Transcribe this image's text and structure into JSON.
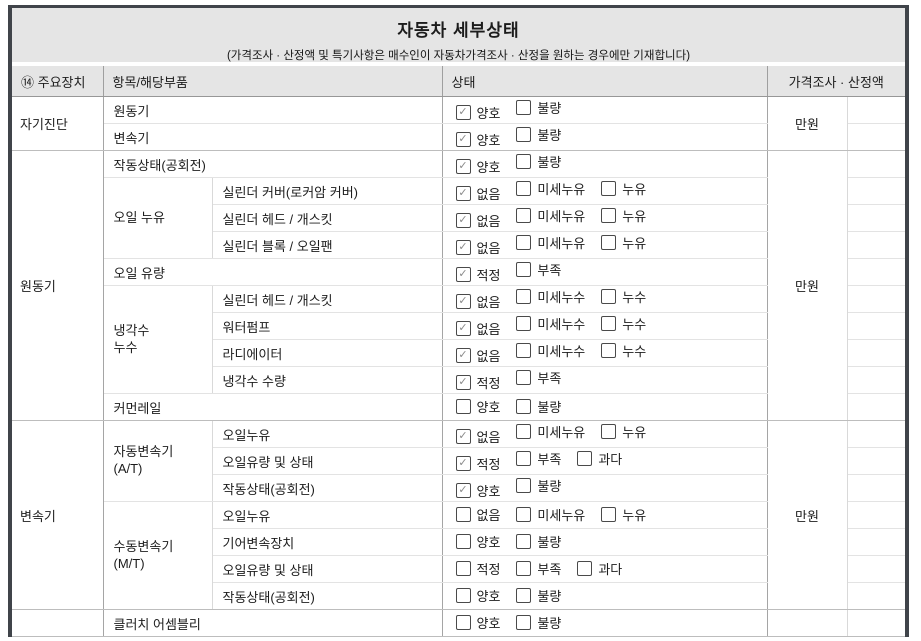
{
  "title": {
    "main": "자동차 세부상태",
    "note": "(가격조사 · 산정액 및 특기사항은 매수인이 자동차가격조사 · 산정을 원하는 경우에만 기재합니다)"
  },
  "checkbox": {
    "checked_glyph": "✓",
    "checked_color": "#8a8a8a"
  },
  "table": {
    "headers": [
      "⑭ 주요장치",
      "항목/해당부품",
      "상태",
      "가격조사 · 산정액"
    ],
    "groups": [
      {
        "label": "자기진단",
        "price_label": "만원",
        "rows": [
          {
            "item": "원동기",
            "span": "full",
            "options": [
              {
                "label": "양호",
                "checked": true
              },
              {
                "label": "불량",
                "checked": false
              }
            ]
          },
          {
            "item": "변속기",
            "span": "full",
            "options": [
              {
                "label": "양호",
                "checked": true
              },
              {
                "label": "불량",
                "checked": false
              }
            ]
          }
        ]
      },
      {
        "label": "원동기",
        "price_label": "만원",
        "rows": [
          {
            "item": "작동상태(공회전)",
            "span": "full",
            "options": [
              {
                "label": "양호",
                "checked": true
              },
              {
                "label": "불량",
                "checked": false
              }
            ]
          },
          {
            "sub": "오일 누유",
            "sub_rowspan": 3,
            "item": "실린더 커버(로커암 커버)",
            "options": [
              {
                "label": "없음",
                "checked": true
              },
              {
                "label": "미세누유",
                "checked": false
              },
              {
                "label": "누유",
                "checked": false
              }
            ]
          },
          {
            "item": "실린더 헤드 / 개스킷",
            "options": [
              {
                "label": "없음",
                "checked": true
              },
              {
                "label": "미세누유",
                "checked": false
              },
              {
                "label": "누유",
                "checked": false
              }
            ]
          },
          {
            "item": "실린더 블록 / 오일팬",
            "options": [
              {
                "label": "없음",
                "checked": true
              },
              {
                "label": "미세누유",
                "checked": false
              },
              {
                "label": "누유",
                "checked": false
              }
            ]
          },
          {
            "item": "오일 유량",
            "span": "full",
            "options": [
              {
                "label": "적정",
                "checked": true
              },
              {
                "label": "부족",
                "checked": false
              }
            ]
          },
          {
            "sub": "냉각수\n누수",
            "sub_rowspan": 4,
            "item": "실린더 헤드 / 개스킷",
            "options": [
              {
                "label": "없음",
                "checked": true
              },
              {
                "label": "미세누수",
                "checked": false
              },
              {
                "label": "누수",
                "checked": false
              }
            ]
          },
          {
            "item": "워터펌프",
            "options": [
              {
                "label": "없음",
                "checked": true
              },
              {
                "label": "미세누수",
                "checked": false
              },
              {
                "label": "누수",
                "checked": false
              }
            ]
          },
          {
            "item": "라디에이터",
            "options": [
              {
                "label": "없음",
                "checked": true
              },
              {
                "label": "미세누수",
                "checked": false
              },
              {
                "label": "누수",
                "checked": false
              }
            ]
          },
          {
            "item": "냉각수 수량",
            "options": [
              {
                "label": "적정",
                "checked": true
              },
              {
                "label": "부족",
                "checked": false
              }
            ]
          },
          {
            "item": "커먼레일",
            "span": "full",
            "options": [
              {
                "label": "양호",
                "checked": false
              },
              {
                "label": "불량",
                "checked": false
              }
            ]
          }
        ]
      },
      {
        "label": "변속기",
        "price_label": "만원",
        "rows": [
          {
            "sub": "자동변속기\n(A/T)",
            "sub_rowspan": 3,
            "item": "오일누유",
            "options": [
              {
                "label": "없음",
                "checked": true
              },
              {
                "label": "미세누유",
                "checked": false
              },
              {
                "label": "누유",
                "checked": false
              }
            ]
          },
          {
            "item": "오일유량 및 상태",
            "options": [
              {
                "label": "적정",
                "checked": true
              },
              {
                "label": "부족",
                "checked": false
              },
              {
                "label": "과다",
                "checked": false
              }
            ]
          },
          {
            "item": "작동상태(공회전)",
            "options": [
              {
                "label": "양호",
                "checked": true
              },
              {
                "label": "불량",
                "checked": false
              }
            ]
          },
          {
            "sub": "수동변속기\n(M/T)",
            "sub_rowspan": 4,
            "item": "오일누유",
            "options": [
              {
                "label": "없음",
                "checked": false
              },
              {
                "label": "미세누유",
                "checked": false
              },
              {
                "label": "누유",
                "checked": false
              }
            ]
          },
          {
            "item": "기어변속장치",
            "options": [
              {
                "label": "양호",
                "checked": false
              },
              {
                "label": "불량",
                "checked": false
              }
            ]
          },
          {
            "item": "오일유량 및 상태",
            "options": [
              {
                "label": "적정",
                "checked": false
              },
              {
                "label": "부족",
                "checked": false
              },
              {
                "label": "과다",
                "checked": false
              }
            ]
          },
          {
            "item": "작동상태(공회전)",
            "options": [
              {
                "label": "양호",
                "checked": false
              },
              {
                "label": "불량",
                "checked": false
              }
            ]
          }
        ]
      },
      {
        "label": "",
        "price_label": "",
        "rows": [
          {
            "item": "클러치 어셈블리",
            "span": "full",
            "options": [
              {
                "label": "양호",
                "checked": false
              },
              {
                "label": "불량",
                "checked": false
              }
            ]
          }
        ]
      }
    ]
  }
}
